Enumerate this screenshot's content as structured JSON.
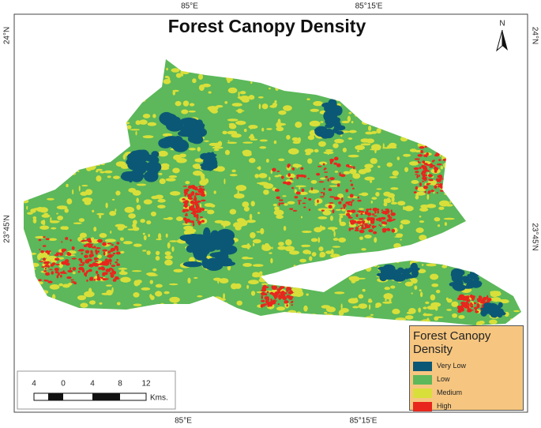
{
  "title": "Forest Canopy Density",
  "graticule": {
    "top": [
      "85°E",
      "85°15'E"
    ],
    "bottom": [
      "85°E",
      "85°15'E"
    ],
    "left": [
      "24°N",
      "23°45'N"
    ],
    "right": [
      "24°N",
      "23°45'N"
    ]
  },
  "north": "N",
  "legend": {
    "title": "Forest Canopy Density",
    "items": [
      {
        "label": "Very Low",
        "color": "#0b5876"
      },
      {
        "label": "Low",
        "color": "#5cb85a"
      },
      {
        "label": "Medium",
        "color": "#d9df3a"
      },
      {
        "label": "High",
        "color": "#e8261d"
      }
    ]
  },
  "scale_bar": {
    "ticks": [
      "4",
      "0",
      "4",
      "8",
      "12"
    ],
    "unit": "Kms."
  }
}
